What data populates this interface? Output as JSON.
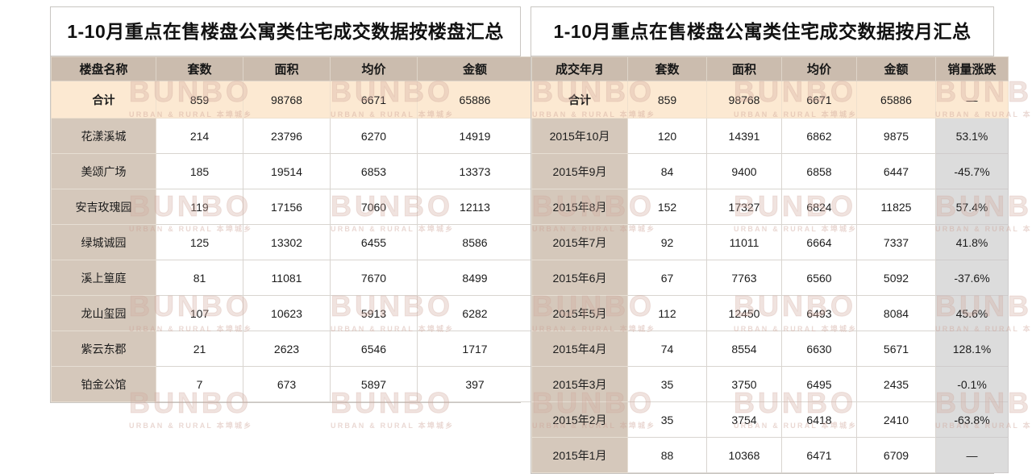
{
  "watermark": {
    "brand": "BUNBO",
    "subtitle": "URBAN & RURAL 本埠城乡"
  },
  "colors": {
    "header_bg": "#cbbcae",
    "name_col_bg": "#d5c8bb",
    "total_row_bg": "#fce9d2",
    "change_col_bg": "#dcdcdc",
    "grid_line": "#d9d5d0",
    "panel_border": "#c9c6c2",
    "title_text": "#111111",
    "cell_text": "#1c1c1c"
  },
  "chart_data": [
    {
      "type": "table",
      "title": "1-10月重点在售楼盘公寓类住宅成交数据按楼盘汇总",
      "columns": [
        "楼盘名称",
        "套数",
        "面积",
        "均价",
        "金额"
      ],
      "total_row": [
        "合计",
        "859",
        "98768",
        "6671",
        "65886"
      ],
      "rows": [
        [
          "花漾溪城",
          "214",
          "23796",
          "6270",
          "14919"
        ],
        [
          "美颂广场",
          "185",
          "19514",
          "6853",
          "13373"
        ],
        [
          "安吉玫瑰园",
          "119",
          "17156",
          "7060",
          "12113"
        ],
        [
          "绿城诚园",
          "125",
          "13302",
          "6455",
          "8586"
        ],
        [
          "溪上篁庭",
          "81",
          "11081",
          "7670",
          "8499"
        ],
        [
          "龙山玺园",
          "107",
          "10623",
          "5913",
          "6282"
        ],
        [
          "紫云东郡",
          "21",
          "2623",
          "6546",
          "1717"
        ],
        [
          "铂金公馆",
          "7",
          "673",
          "5897",
          "397"
        ]
      ]
    },
    {
      "type": "table",
      "title": "1-10月重点在售楼盘公寓类住宅成交数据按月汇总",
      "columns": [
        "成交年月",
        "套数",
        "面积",
        "均价",
        "金额",
        "销量涨跌"
      ],
      "total_row": [
        "合计",
        "859",
        "98768",
        "6671",
        "65886",
        "—"
      ],
      "rows": [
        [
          "2015年10月",
          "120",
          "14391",
          "6862",
          "9875",
          "53.1%"
        ],
        [
          "2015年9月",
          "84",
          "9400",
          "6858",
          "6447",
          "-45.7%"
        ],
        [
          "2015年8月",
          "152",
          "17327",
          "6824",
          "11825",
          "57.4%"
        ],
        [
          "2015年7月",
          "92",
          "11011",
          "6664",
          "7337",
          "41.8%"
        ],
        [
          "2015年6月",
          "67",
          "7763",
          "6560",
          "5092",
          "-37.6%"
        ],
        [
          "2015年5月",
          "112",
          "12450",
          "6493",
          "8084",
          "45.6%"
        ],
        [
          "2015年4月",
          "74",
          "8554",
          "6630",
          "5671",
          "128.1%"
        ],
        [
          "2015年3月",
          "35",
          "3750",
          "6495",
          "2435",
          "-0.1%"
        ],
        [
          "2015年2月",
          "35",
          "3754",
          "6418",
          "2410",
          "-63.8%"
        ],
        [
          "2015年1月",
          "88",
          "10368",
          "6471",
          "6709",
          "—"
        ]
      ]
    }
  ]
}
